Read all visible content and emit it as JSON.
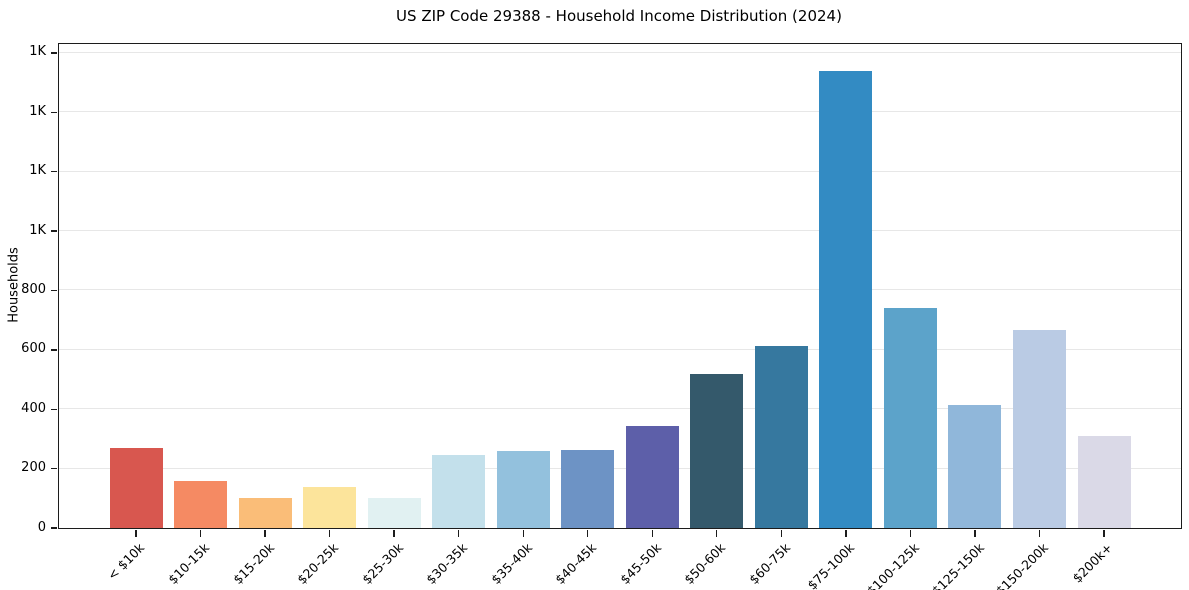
{
  "title": "US ZIP Code 29388 - Household Income Distribution (2024)",
  "chart_data": {
    "type": "bar",
    "title": "US ZIP Code 29388 - Household Income Distribution (2024)",
    "xlabel": "",
    "ylabel": "Households",
    "categories": [
      "< $10k",
      "$10-15k",
      "$15-20k",
      "$20-25k",
      "$25-30k",
      "$30-35k",
      "$35-40k",
      "$40-45k",
      "$45-50k",
      "$50-60k",
      "$60-75k",
      "$75-100k",
      "$100-125k",
      "$125-150k",
      "$150-200k",
      "$200k+"
    ],
    "values": [
      270,
      160,
      100,
      137,
      100,
      245,
      258,
      264,
      343,
      518,
      612,
      1540,
      740,
      413,
      666,
      310
    ],
    "bar_colors": [
      "#D8574F",
      "#F58A63",
      "#FABD78",
      "#FCE49B",
      "#E1F1F2",
      "#C3E0EB",
      "#93C1DD",
      "#6D93C5",
      "#5D5FA9",
      "#34596B",
      "#36789F",
      "#338BC3",
      "#5CA3CA",
      "#90B7DA",
      "#BACBE4",
      "#DAD9E7"
    ],
    "ylim": [
      0,
      1630
    ],
    "yticks": [
      {
        "value": 0,
        "label": "0"
      },
      {
        "value": 200,
        "label": "200"
      },
      {
        "value": 400,
        "label": "400"
      },
      {
        "value": 600,
        "label": "600"
      },
      {
        "value": 800,
        "label": "800"
      },
      {
        "value": 1000,
        "label": "1K"
      },
      {
        "value": 1200,
        "label": "1K"
      },
      {
        "value": 1400,
        "label": "1K"
      },
      {
        "value": 1600,
        "label": "1K"
      }
    ],
    "xtick_rotation_deg": 45,
    "grid": "horizontal",
    "gridline_color": "#e7e7e7",
    "spine_color": "#1c1c1c",
    "background_color": "#ffffff",
    "legend": null
  }
}
